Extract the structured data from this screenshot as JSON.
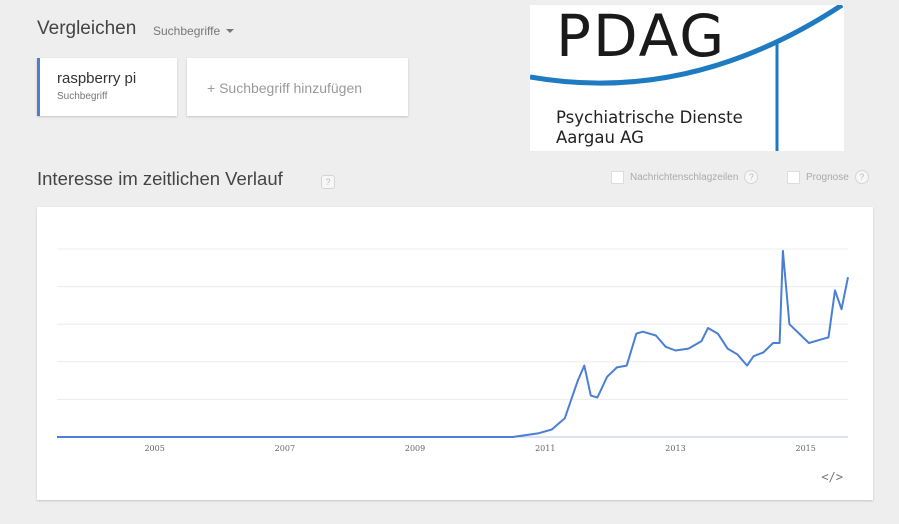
{
  "header": {
    "compare_title": "Vergleichen",
    "compare_mode": "Suchbegriffe"
  },
  "terms": [
    {
      "name": "raspberry pi",
      "type": "Suchbegriff",
      "color": "#4a7fd4"
    }
  ],
  "add_term": {
    "label": "+ Suchbegriff hinzufügen"
  },
  "logo": {
    "text": "PDAG",
    "line1": "Psychiatrische Dienste",
    "line2": "Aargau AG",
    "accent_color": "#1f7bc1"
  },
  "section": {
    "title": "Interesse im zeitlichen Verlauf",
    "help": "?",
    "options": [
      {
        "label": "Nachrichtenschlagzeilen",
        "help": "?"
      },
      {
        "label": "Prognose",
        "help": "?"
      }
    ]
  },
  "embed": {
    "label": "</>"
  },
  "chart_data": {
    "type": "line",
    "title": "",
    "xlabel": "",
    "ylabel": "",
    "xticks": [
      "2005",
      "2007",
      "2009",
      "2011",
      "2013",
      "2015"
    ],
    "ylim": [
      0,
      100
    ],
    "x_range": [
      2004.0,
      2016.15
    ],
    "grid": true,
    "series": [
      {
        "color": "#4a7fd4",
        "x": [
          2004.0,
          2011.0,
          2011.2,
          2011.4,
          2011.6,
          2011.8,
          2011.9,
          2012.0,
          2012.1,
          2012.2,
          2012.3,
          2012.45,
          2012.6,
          2012.75,
          2012.9,
          2013.0,
          2013.2,
          2013.35,
          2013.5,
          2013.7,
          2013.9,
          2014.0,
          2014.15,
          2014.3,
          2014.45,
          2014.6,
          2014.7,
          2014.85,
          2015.0,
          2015.1,
          2015.15,
          2015.25,
          2015.4,
          2015.55,
          2015.75,
          2015.85,
          2015.95,
          2016.05,
          2016.15
        ],
        "y": [
          0,
          0,
          1,
          2,
          4,
          10,
          20,
          30,
          38,
          22,
          21,
          32,
          37,
          38,
          55,
          56,
          54,
          48,
          46,
          47,
          51,
          58,
          55,
          47,
          44,
          38,
          43,
          45,
          50,
          50,
          99,
          60,
          55,
          50,
          52,
          53,
          78,
          68,
          85
        ]
      }
    ]
  }
}
